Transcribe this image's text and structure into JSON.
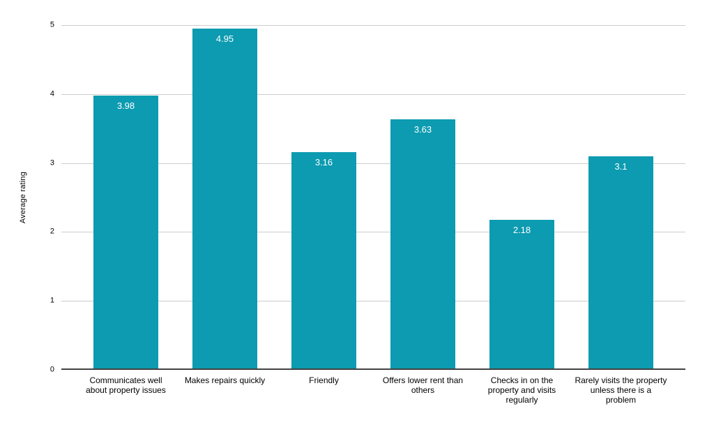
{
  "chart_data": {
    "type": "bar",
    "title": "",
    "xlabel": "",
    "ylabel": "Average rating",
    "ylim": [
      0,
      5
    ],
    "yticks": [
      0,
      1,
      2,
      3,
      4,
      5
    ],
    "grid": true,
    "legend": "none",
    "background": "#ffffff",
    "categories": [
      "Communicates well about property issues",
      "Makes repairs quickly",
      "Friendly",
      "Offers lower rent than others",
      "Checks in on the property and visits regularly",
      "Rarely visits the property unless there is a problem"
    ],
    "category_display_lines": [
      [
        "Communicates well",
        "about property issues"
      ],
      [
        "Makes repairs quickly"
      ],
      [
        "Friendly"
      ],
      [
        "Offers lower rent than",
        "others"
      ],
      [
        "Checks in on the",
        "property and visits",
        "regularly"
      ],
      [
        "Rarely visits the property",
        "unless there is a",
        "problem"
      ]
    ],
    "values": [
      3.98,
      4.95,
      3.16,
      3.63,
      2.18,
      3.1
    ],
    "value_labels": [
      "3.98",
      "4.95",
      "3.16",
      "3.63",
      "2.18",
      "3.1"
    ],
    "bar_color": "#0c9bb0",
    "value_label_color": "#ffffff",
    "gridline_color": "#cccccc",
    "axis_line_color": "#424242",
    "text_color": "#000000"
  }
}
